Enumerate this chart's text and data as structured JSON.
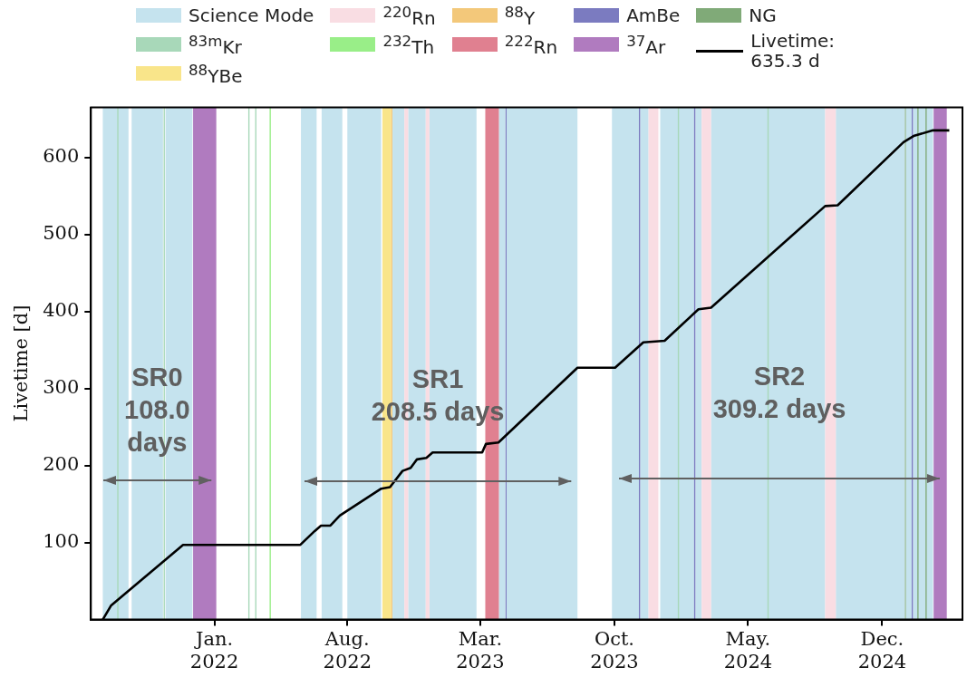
{
  "chart_data": {
    "type": "line",
    "ylabel": "Livetime [d]",
    "xlim": [
      "2021-06-18",
      "2025-04-08"
    ],
    "xticks": [
      {
        "value": "2022-01-01",
        "label": "Jan.\n2022"
      },
      {
        "value": "2022-08-01",
        "label": "Aug.\n2022"
      },
      {
        "value": "2023-03-01",
        "label": "Mar.\n2023"
      },
      {
        "value": "2023-10-01",
        "label": "Oct.\n2023"
      },
      {
        "value": "2024-05-01",
        "label": "May.\n2024"
      },
      {
        "value": "2024-12-01",
        "label": "Dec.\n2024"
      }
    ],
    "ylim": [
      0,
      665
    ],
    "yticks": [
      100,
      200,
      300,
      400,
      500,
      600
    ],
    "grid": false,
    "legend": "top",
    "series": [
      {
        "name": "Livetime: 635.3 d",
        "color": "#000000",
        "x": [
          "2021-07-07",
          "2021-07-20",
          "2021-11-12",
          "2022-05-18",
          "2022-06-10",
          "2022-06-20",
          "2022-07-05",
          "2022-07-20",
          "2022-09-24",
          "2022-10-08",
          "2022-10-28",
          "2022-11-10",
          "2022-11-20",
          "2022-12-05",
          "2022-12-15",
          "2023-03-04",
          "2023-03-10",
          "2023-03-30",
          "2023-08-03",
          "2023-10-02",
          "2023-11-16",
          "2023-12-20",
          "2024-02-12",
          "2024-03-03",
          "2024-09-01",
          "2024-09-21",
          "2025-01-04",
          "2025-01-20",
          "2025-02-20",
          "2025-03-18"
        ],
        "values": [
          0,
          18,
          97,
          97,
          115,
          122,
          122,
          135,
          170,
          172,
          193,
          197,
          208,
          210,
          217,
          217,
          228,
          230,
          327,
          327,
          360,
          362,
          403,
          405,
          537,
          538,
          620,
          628,
          635.3,
          635.3
        ]
      }
    ],
    "bands": [
      {
        "axis": "x",
        "from": "2021-07-07",
        "to": "2021-08-17",
        "label": "Science Mode",
        "color": "#c5e3ee"
      },
      {
        "axis": "x",
        "from": "2022-02-24",
        "to": "2022-02-26",
        "label": "$^{83m}$Kr",
        "color": "#a8d8b9"
      },
      {
        "axis": "x",
        "from": "2022-09-26",
        "to": "2022-10-10",
        "label": "$^{88}$YBe",
        "color": "#f9e58a"
      },
      {
        "axis": "x",
        "from": "2023-11-24",
        "to": "2023-12-10",
        "label": "$^{220}$Rn",
        "color": "#f9dde3"
      },
      {
        "axis": "x",
        "from": "2022-03-30",
        "to": "2022-04-01",
        "label": "$^{232}$Th",
        "color": "#99ee88"
      },
      {
        "axis": "x",
        "from": "2022-10-10",
        "to": "2022-10-12",
        "label": "$^{88}$Y",
        "color": "#f3c87a"
      },
      {
        "axis": "x",
        "from": "2023-03-09",
        "to": "2023-03-31",
        "label": "$^{222}$Rn",
        "color": "#e08090"
      },
      {
        "axis": "x",
        "from": "2023-04-10",
        "to": "2023-04-12",
        "label": "AmBe",
        "color": "#7b7bc0"
      },
      {
        "axis": "x",
        "from": "2021-11-28",
        "to": "2022-01-04",
        "label": "$^{37}$Ar",
        "color": "#b07bbf"
      },
      {
        "axis": "x",
        "from": "2025-01-06",
        "to": "2025-01-08",
        "label": "NG",
        "color": "#80aa78"
      },
      {
        "axis": "x",
        "from": "2021-08-22",
        "to": "2021-10-11",
        "color": "#c5e3ee"
      },
      {
        "axis": "x",
        "from": "2021-10-15",
        "to": "2021-11-27",
        "color": "#c5e3ee"
      },
      {
        "axis": "x",
        "from": "2022-05-19",
        "to": "2022-06-13",
        "color": "#c5e3ee"
      },
      {
        "axis": "x",
        "from": "2022-06-21",
        "to": "2022-07-24",
        "color": "#c5e3ee"
      },
      {
        "axis": "x",
        "from": "2022-08-01",
        "to": "2022-09-24",
        "color": "#c5e3ee"
      },
      {
        "axis": "x",
        "from": "2022-10-12",
        "to": "2022-10-31",
        "color": "#c5e3ee"
      },
      {
        "axis": "x",
        "from": "2022-11-06",
        "to": "2022-12-04",
        "color": "#c5e3ee"
      },
      {
        "axis": "x",
        "from": "2022-12-10",
        "to": "2023-02-23",
        "color": "#c5e3ee"
      },
      {
        "axis": "x",
        "from": "2023-03-31",
        "to": "2023-04-10",
        "color": "#c5e3ee"
      },
      {
        "axis": "x",
        "from": "2023-04-12",
        "to": "2023-08-03",
        "color": "#c5e3ee"
      },
      {
        "axis": "x",
        "from": "2023-09-27",
        "to": "2023-11-09",
        "color": "#c5e3ee"
      },
      {
        "axis": "x",
        "from": "2023-11-11",
        "to": "2023-11-24",
        "color": "#c5e3ee"
      },
      {
        "axis": "x",
        "from": "2023-12-13",
        "to": "2024-02-05",
        "color": "#c5e3ee"
      },
      {
        "axis": "x",
        "from": "2024-02-07",
        "to": "2024-02-17",
        "color": "#c5e3ee"
      },
      {
        "axis": "x",
        "from": "2024-03-03",
        "to": "2024-09-01",
        "color": "#c5e3ee"
      },
      {
        "axis": "x",
        "from": "2024-09-18",
        "to": "2025-01-06",
        "color": "#c5e3ee"
      },
      {
        "axis": "x",
        "from": "2025-01-08",
        "to": "2025-01-17",
        "color": "#c5e3ee"
      },
      {
        "axis": "x",
        "from": "2025-01-19",
        "to": "2025-02-20",
        "color": "#c5e3ee"
      },
      {
        "axis": "x",
        "from": "2021-07-30",
        "to": "2021-08-01",
        "color": "#a8d8b9"
      },
      {
        "axis": "x",
        "from": "2021-10-12",
        "to": "2021-10-14",
        "color": "#a8d8b9"
      },
      {
        "axis": "x",
        "from": "2022-03-07",
        "to": "2022-03-09",
        "color": "#a8d8b9"
      },
      {
        "axis": "x",
        "from": "2024-01-10",
        "to": "2024-01-12",
        "color": "#a8d8b9"
      },
      {
        "axis": "x",
        "from": "2024-06-01",
        "to": "2024-06-03",
        "color": "#a8d8b9"
      },
      {
        "axis": "x",
        "from": "2022-10-31",
        "to": "2022-11-06",
        "color": "#f9dde3"
      },
      {
        "axis": "x",
        "from": "2022-12-04",
        "to": "2022-12-10",
        "color": "#f9dde3"
      },
      {
        "axis": "x",
        "from": "2024-02-17",
        "to": "2024-03-03",
        "color": "#f9dde3"
      },
      {
        "axis": "x",
        "from": "2024-09-01",
        "to": "2024-09-18",
        "color": "#f9dde3"
      },
      {
        "axis": "x",
        "from": "2023-11-09",
        "to": "2023-11-11",
        "color": "#7b7bc0"
      },
      {
        "axis": "x",
        "from": "2024-02-05",
        "to": "2024-02-07",
        "color": "#7b7bc0"
      },
      {
        "axis": "x",
        "from": "2025-01-17",
        "to": "2025-01-19",
        "color": "#7b7bc0"
      },
      {
        "axis": "x",
        "from": "2025-01-26",
        "to": "2025-01-28",
        "color": "#80aa78"
      },
      {
        "axis": "x",
        "from": "2025-02-08",
        "to": "2025-02-10",
        "color": "#80aa78"
      },
      {
        "axis": "x",
        "from": "2025-02-21",
        "to": "2025-03-14",
        "color": "#b07bbf"
      }
    ],
    "annotations": [
      "SR0\n108.0\ndays",
      "SR1\n208.5 days",
      "SR2\n309.2 days"
    ]
  }
}
